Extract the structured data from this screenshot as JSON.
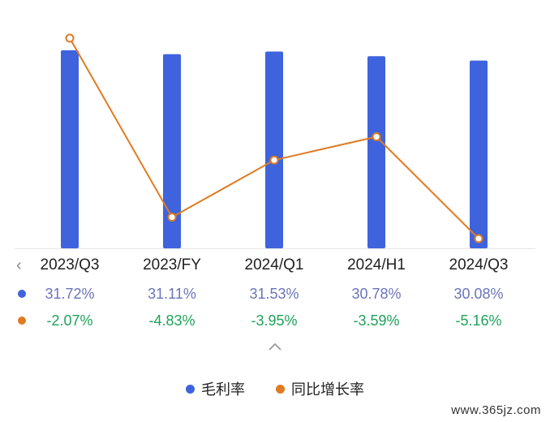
{
  "chart_data": {
    "type": "bar",
    "categories": [
      "2023/Q3",
      "2023/FY",
      "2024/Q1",
      "2024/H1",
      "2024/Q3"
    ],
    "series": [
      {
        "name": "毛利率",
        "kind": "bar",
        "color": "#3e63dd",
        "values": [
          31.72,
          31.11,
          31.53,
          30.78,
          30.08
        ],
        "labels": [
          "31.72%",
          "31.11%",
          "31.53%",
          "30.78%",
          "30.08%"
        ]
      },
      {
        "name": "同比增长率",
        "kind": "line",
        "color": "#e07b22",
        "values": [
          -2.07,
          -4.83,
          -3.95,
          -3.59,
          -5.16
        ],
        "labels": [
          "-2.07%",
          "-4.83%",
          "-3.95%",
          "-3.59%",
          "-5.16%"
        ]
      }
    ],
    "legend_position": "bottom",
    "grid": false
  },
  "icons": {
    "prev": "chevron-left-icon",
    "collapse": "chevron-up-icon"
  },
  "watermark": "www.365jz.com"
}
